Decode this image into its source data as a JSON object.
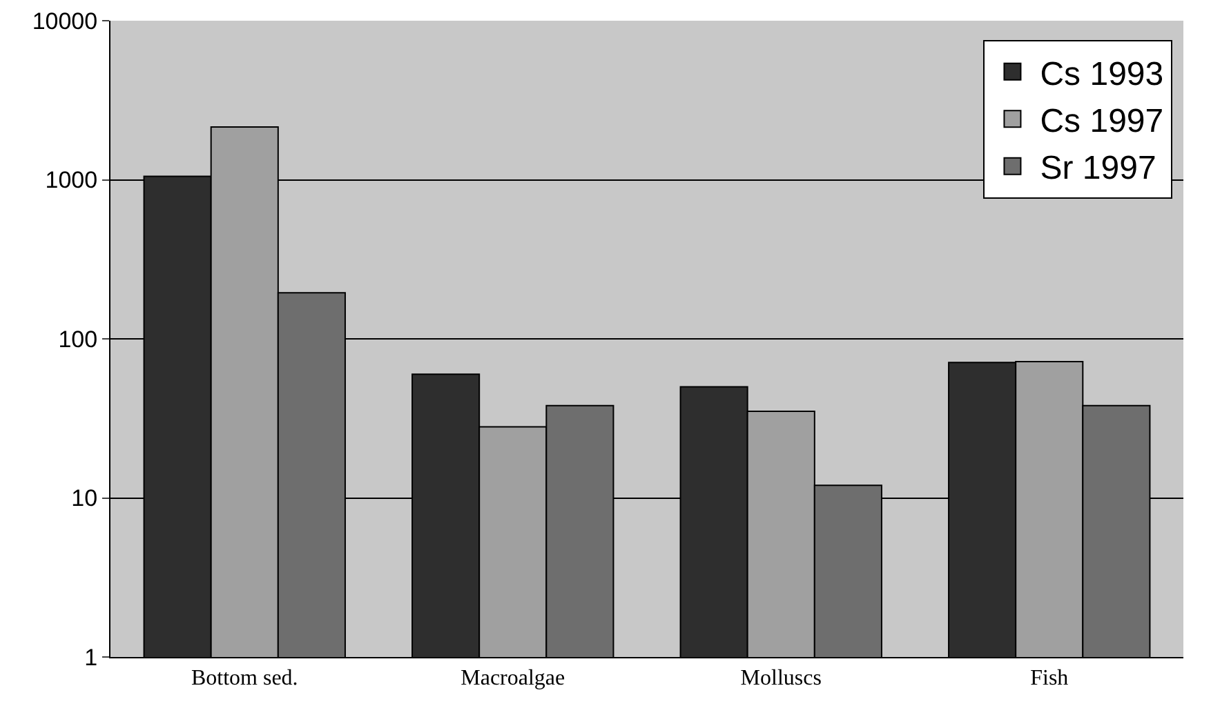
{
  "chart_data": {
    "type": "bar",
    "categories": [
      "Bottom sed.",
      "Macroalgae",
      "Molluscs",
      "Fish"
    ],
    "series": [
      {
        "name": "Cs 1993",
        "color": "#2e2e2e",
        "values": [
          1050,
          60,
          50,
          71
        ]
      },
      {
        "name": "Cs 1997",
        "color": "#a0a0a0",
        "values": [
          2150,
          28,
          35,
          72
        ]
      },
      {
        "name": "Sr 1997",
        "color": "#6e6e6e",
        "values": [
          195,
          38,
          12,
          38
        ]
      }
    ],
    "log": true,
    "ylim": [
      1,
      10000
    ],
    "yticks": [
      1,
      10,
      100,
      1000,
      10000
    ],
    "grid": "y",
    "legend": "top right"
  }
}
